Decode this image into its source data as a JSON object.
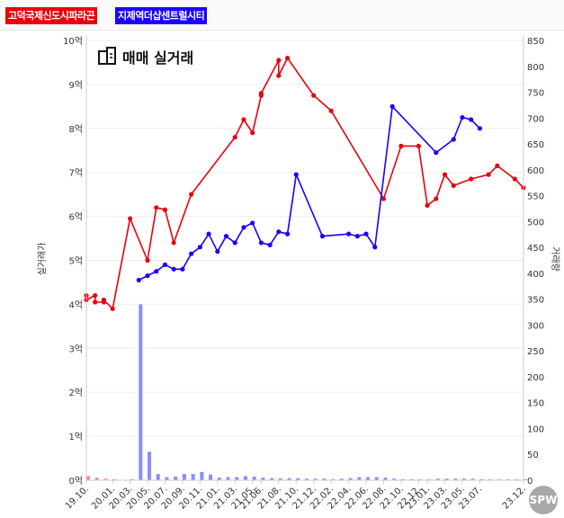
{
  "legend": {
    "series1_label": "고덕국제신도시파라곤",
    "series2_label": "지제역더샵센트럴시티"
  },
  "chart_data": {
    "type": "line",
    "title": "매매 실거래",
    "ylabel": "실거래가",
    "y2label": "거래량",
    "ylim": [
      0,
      10
    ],
    "y2lim": [
      0,
      850
    ],
    "grid": true,
    "yticks": [
      "0억",
      "1억",
      "2억",
      "3억",
      "4억",
      "5억",
      "6억",
      "7억",
      "8억",
      "9억",
      "10억"
    ],
    "y2ticks": [
      "0",
      "50",
      "100",
      "150",
      "200",
      "250",
      "300",
      "350",
      "400",
      "450",
      "500",
      "550",
      "600",
      "650",
      "700",
      "750",
      "800",
      "850"
    ],
    "xticks": [
      "19.10.",
      "20.01.",
      "20.03.",
      "20.05.",
      "20.07.",
      "20.09.",
      "20.11.",
      "21.01.",
      "21.03.",
      "21.05.",
      "21.06.",
      "21.08.",
      "21.10.",
      "21.12.",
      "22.02.",
      "22.04.",
      "22.06.",
      "22.08.",
      "22.10.",
      "22.12.",
      "23.01.",
      "23.03.",
      "23.05.",
      "23.07.",
      "23.12."
    ],
    "x_start": "2019-10",
    "x_end": "2023-12",
    "series": [
      {
        "name": "고덕국제신도시파라곤",
        "color": "#e8000d",
        "points": [
          {
            "x": "2019-10",
            "y": 4.2
          },
          {
            "x": "2019-10",
            "y": 4.1
          },
          {
            "x": "2019-11",
            "y": 4.2
          },
          {
            "x": "2019-11",
            "y": 4.05
          },
          {
            "x": "2019-12",
            "y": 4.05
          },
          {
            "x": "2019-12",
            "y": 4.1
          },
          {
            "x": "2020-01",
            "y": 3.9
          },
          {
            "x": "2020-03",
            "y": 5.95
          },
          {
            "x": "2020-05",
            "y": 5.0
          },
          {
            "x": "2020-06",
            "y": 6.2
          },
          {
            "x": "2020-07",
            "y": 6.15
          },
          {
            "x": "2020-08",
            "y": 5.4
          },
          {
            "x": "2020-10",
            "y": 6.5
          },
          {
            "x": "2021-03",
            "y": 7.8
          },
          {
            "x": "2021-04",
            "y": 8.2
          },
          {
            "x": "2021-05",
            "y": 7.9
          },
          {
            "x": "2021-06",
            "y": 8.75
          },
          {
            "x": "2021-06",
            "y": 8.8
          },
          {
            "x": "2021-08",
            "y": 9.55
          },
          {
            "x": "2021-08",
            "y": 9.2
          },
          {
            "x": "2021-09",
            "y": 9.6
          },
          {
            "x": "2021-12",
            "y": 8.75
          },
          {
            "x": "2022-02",
            "y": 8.4
          },
          {
            "x": "2022-08",
            "y": 6.4
          },
          {
            "x": "2022-10",
            "y": 7.6
          },
          {
            "x": "2022-12",
            "y": 7.6
          },
          {
            "x": "2023-01",
            "y": 6.25
          },
          {
            "x": "2023-02",
            "y": 6.4
          },
          {
            "x": "2023-03",
            "y": 6.95
          },
          {
            "x": "2023-04",
            "y": 6.7
          },
          {
            "x": "2023-06",
            "y": 6.85
          },
          {
            "x": "2023-08",
            "y": 6.95
          },
          {
            "x": "2023-09",
            "y": 7.15
          },
          {
            "x": "2023-11",
            "y": 6.85
          },
          {
            "x": "2023-12",
            "y": 6.65
          }
        ]
      },
      {
        "name": "지제역더샵센트럴시티",
        "color": "#1a00ff",
        "points": [
          {
            "x": "2020-04",
            "y": 4.55
          },
          {
            "x": "2020-05",
            "y": 4.65
          },
          {
            "x": "2020-06",
            "y": 4.75
          },
          {
            "x": "2020-07",
            "y": 4.9
          },
          {
            "x": "2020-08",
            "y": 4.8
          },
          {
            "x": "2020-09",
            "y": 4.8
          },
          {
            "x": "2020-10",
            "y": 5.15
          },
          {
            "x": "2020-11",
            "y": 5.3
          },
          {
            "x": "2020-12",
            "y": 5.6
          },
          {
            "x": "2021-01",
            "y": 5.2
          },
          {
            "x": "2021-02",
            "y": 5.55
          },
          {
            "x": "2021-03",
            "y": 5.4
          },
          {
            "x": "2021-04",
            "y": 5.75
          },
          {
            "x": "2021-05",
            "y": 5.85
          },
          {
            "x": "2021-06",
            "y": 5.4
          },
          {
            "x": "2021-07",
            "y": 5.35
          },
          {
            "x": "2021-08",
            "y": 5.65
          },
          {
            "x": "2021-09",
            "y": 5.6
          },
          {
            "x": "2021-10",
            "y": 6.95
          },
          {
            "x": "2022-01",
            "y": 5.55
          },
          {
            "x": "2022-04",
            "y": 5.6
          },
          {
            "x": "2022-05",
            "y": 5.55
          },
          {
            "x": "2022-06",
            "y": 5.6
          },
          {
            "x": "2022-07",
            "y": 5.3
          },
          {
            "x": "2022-09",
            "y": 8.5
          },
          {
            "x": "2023-02",
            "y": 7.45
          },
          {
            "x": "2023-04",
            "y": 7.75
          },
          {
            "x": "2023-05",
            "y": 8.25
          },
          {
            "x": "2023-06",
            "y": 8.2
          },
          {
            "x": "2023-07",
            "y": 8.0
          }
        ]
      }
    ],
    "volume": {
      "color": "#8080ff",
      "bars": [
        {
          "x": "2019-10",
          "v": 8,
          "c": "#f08080"
        },
        {
          "x": "2019-11",
          "v": 5,
          "c": "#f08080"
        },
        {
          "x": "2019-12",
          "v": 3,
          "c": "#f08080"
        },
        {
          "x": "2020-01",
          "v": 2,
          "c": "#f08080"
        },
        {
          "x": "2020-03",
          "v": 2,
          "c": "#f08080"
        },
        {
          "x": "2020-04",
          "v": 340,
          "c": "#8080ff"
        },
        {
          "x": "2020-05",
          "v": 55,
          "c": "#8080ff"
        },
        {
          "x": "2020-06",
          "v": 12,
          "c": "#8080ff"
        },
        {
          "x": "2020-07",
          "v": 6,
          "c": "#8080ff"
        },
        {
          "x": "2020-08",
          "v": 7,
          "c": "#8080ff"
        },
        {
          "x": "2020-09",
          "v": 12,
          "c": "#8080ff"
        },
        {
          "x": "2020-10",
          "v": 12,
          "c": "#8080ff"
        },
        {
          "x": "2020-11",
          "v": 16,
          "c": "#8080ff"
        },
        {
          "x": "2020-12",
          "v": 11,
          "c": "#8080ff"
        },
        {
          "x": "2021-01",
          "v": 5,
          "c": "#8080ff"
        },
        {
          "x": "2021-02",
          "v": 6,
          "c": "#8080ff"
        },
        {
          "x": "2021-03",
          "v": 6,
          "c": "#8080ff"
        },
        {
          "x": "2021-04",
          "v": 8,
          "c": "#8080ff"
        },
        {
          "x": "2021-05",
          "v": 7,
          "c": "#8080ff"
        },
        {
          "x": "2021-06",
          "v": 5,
          "c": "#8080ff"
        },
        {
          "x": "2021-07",
          "v": 4,
          "c": "#8080ff"
        },
        {
          "x": "2021-08",
          "v": 4,
          "c": "#f08080"
        },
        {
          "x": "2021-09",
          "v": 4,
          "c": "#8080ff"
        },
        {
          "x": "2021-10",
          "v": 4,
          "c": "#8080ff"
        },
        {
          "x": "2021-11",
          "v": 3,
          "c": "#8080ff"
        },
        {
          "x": "2021-12",
          "v": 3,
          "c": "#8080ff"
        },
        {
          "x": "2022-01",
          "v": 3,
          "c": "#8080ff"
        },
        {
          "x": "2022-02",
          "v": 2,
          "c": "#8080ff"
        },
        {
          "x": "2022-03",
          "v": 3,
          "c": "#8080ff"
        },
        {
          "x": "2022-04",
          "v": 4,
          "c": "#8080ff"
        },
        {
          "x": "2022-05",
          "v": 6,
          "c": "#8080ff"
        },
        {
          "x": "2022-06",
          "v": 6,
          "c": "#8080ff"
        },
        {
          "x": "2022-07",
          "v": 6,
          "c": "#8080ff"
        },
        {
          "x": "2022-08",
          "v": 5,
          "c": "#8080ff"
        },
        {
          "x": "2022-09",
          "v": 3,
          "c": "#8080ff"
        },
        {
          "x": "2022-10",
          "v": 2,
          "c": "#8080ff"
        },
        {
          "x": "2022-11",
          "v": 2,
          "c": "#8080ff"
        },
        {
          "x": "2022-12",
          "v": 2,
          "c": "#f08080"
        },
        {
          "x": "2023-01",
          "v": 2,
          "c": "#f08080"
        },
        {
          "x": "2023-02",
          "v": 3,
          "c": "#8080ff"
        },
        {
          "x": "2023-03",
          "v": 3,
          "c": "#8080ff"
        },
        {
          "x": "2023-04",
          "v": 3,
          "c": "#8080ff"
        },
        {
          "x": "2023-05",
          "v": 3,
          "c": "#8080ff"
        },
        {
          "x": "2023-06",
          "v": 3,
          "c": "#8080ff"
        },
        {
          "x": "2023-07",
          "v": 2,
          "c": "#8080ff"
        },
        {
          "x": "2023-08",
          "v": 2,
          "c": "#f08080"
        },
        {
          "x": "2023-09",
          "v": 2,
          "c": "#f08080"
        },
        {
          "x": "2023-10",
          "v": 2,
          "c": "#f08080"
        },
        {
          "x": "2023-11",
          "v": 2,
          "c": "#f08080"
        },
        {
          "x": "2023-12",
          "v": 2,
          "c": "#f08080"
        }
      ]
    }
  },
  "watermark": "SPW"
}
